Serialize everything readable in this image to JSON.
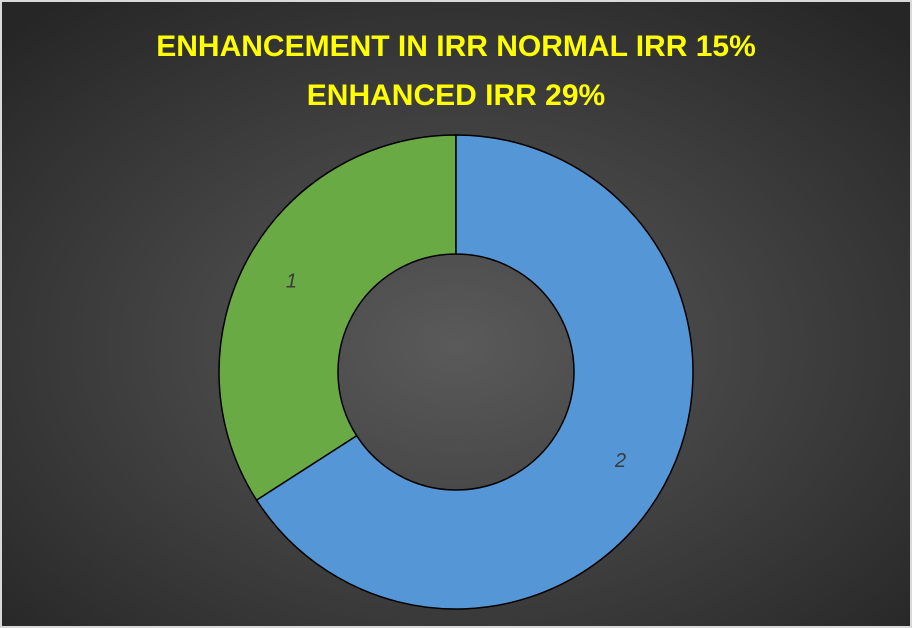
{
  "chart_data": {
    "type": "donut",
    "title": [
      "ENHANCEMENT IN IRR NORMAL IRR 15%",
      "ENHANCED IRR 29%"
    ],
    "categories": [
      "1",
      "2"
    ],
    "values": [
      15,
      29
    ],
    "colors": [
      "#6aaa44",
      "#5596d6"
    ]
  }
}
